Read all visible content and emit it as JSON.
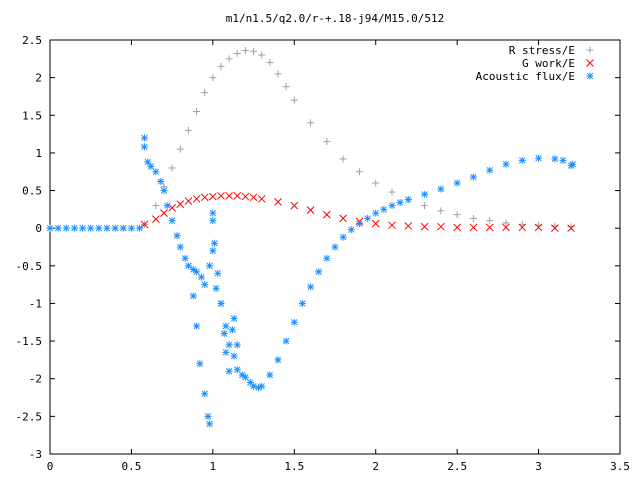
{
  "chart_data": {
    "type": "scatter",
    "title": "m1/n1.5/q2.0/r-+.18-j94/M15.0/512",
    "xlabel": "",
    "ylabel": "",
    "xlim": [
      0,
      3.5
    ],
    "ylim": [
      -3,
      2.5
    ],
    "xticks": [
      "0",
      "0.5",
      "1",
      "1.5",
      "2",
      "2.5",
      "3",
      "3.5"
    ],
    "yticks": [
      "2.5",
      "2",
      "1.5",
      "1",
      "0.5",
      "0",
      "-0.5",
      "-1",
      "-1.5",
      "-2",
      "-2.5",
      "-3"
    ],
    "grid": false,
    "legend_position": "top-right",
    "series": [
      {
        "name": "R stress/E",
        "marker": "+",
        "color": "#a0a0a0",
        "x": [
          0.58,
          0.65,
          0.7,
          0.75,
          0.8,
          0.85,
          0.9,
          0.95,
          1.0,
          1.05,
          1.1,
          1.15,
          1.2,
          1.25,
          1.3,
          1.35,
          1.4,
          1.45,
          1.5,
          1.6,
          1.7,
          1.8,
          1.9,
          2.0,
          2.1,
          2.2,
          2.3,
          2.4,
          2.5,
          2.6,
          2.7,
          2.8,
          2.9,
          3.0,
          3.1,
          3.2
        ],
        "y": [
          0.05,
          0.3,
          0.55,
          0.8,
          1.05,
          1.3,
          1.55,
          1.8,
          2.0,
          2.15,
          2.25,
          2.32,
          2.36,
          2.35,
          2.3,
          2.2,
          2.05,
          1.88,
          1.7,
          1.4,
          1.15,
          0.92,
          0.75,
          0.6,
          0.48,
          0.38,
          0.3,
          0.23,
          0.18,
          0.13,
          0.1,
          0.07,
          0.05,
          0.04,
          0.03,
          0.02
        ]
      },
      {
        "name": "G work/E",
        "marker": "x",
        "color": "#ff0000",
        "x": [
          0.58,
          0.65,
          0.7,
          0.75,
          0.8,
          0.85,
          0.9,
          0.95,
          1.0,
          1.05,
          1.1,
          1.15,
          1.2,
          1.25,
          1.3,
          1.4,
          1.5,
          1.6,
          1.7,
          1.8,
          1.9,
          2.0,
          2.1,
          2.2,
          2.3,
          2.4,
          2.5,
          2.6,
          2.7,
          2.8,
          2.9,
          3.0,
          3.1,
          3.2
        ],
        "y": [
          0.05,
          0.12,
          0.2,
          0.27,
          0.32,
          0.36,
          0.39,
          0.41,
          0.42,
          0.43,
          0.43,
          0.43,
          0.42,
          0.41,
          0.39,
          0.35,
          0.3,
          0.24,
          0.18,
          0.13,
          0.09,
          0.06,
          0.04,
          0.03,
          0.02,
          0.02,
          0.01,
          0.01,
          0.01,
          0.01,
          0.01,
          0.01,
          0.0,
          0.0
        ]
      },
      {
        "name": "Acoustic flux/E",
        "marker": "*",
        "color": "#1e90ff",
        "x": [
          0.0,
          0.05,
          0.1,
          0.15,
          0.2,
          0.25,
          0.3,
          0.35,
          0.4,
          0.45,
          0.5,
          0.55,
          0.58,
          0.58,
          0.6,
          0.62,
          0.65,
          0.68,
          0.7,
          0.72,
          0.75,
          0.78,
          0.8,
          0.83,
          0.85,
          0.88,
          0.9,
          0.93,
          0.95,
          0.98,
          1.0,
          1.02,
          1.05,
          1.08,
          1.1,
          1.13,
          1.15,
          1.18,
          1.2,
          1.23,
          1.25,
          1.28,
          1.3,
          1.35,
          1.4,
          1.45,
          1.5,
          1.55,
          1.6,
          1.65,
          1.7,
          1.75,
          1.8,
          1.85,
          1.9,
          1.95,
          2.0,
          2.05,
          2.1,
          2.15,
          2.2,
          2.3,
          2.4,
          2.5,
          2.6,
          2.7,
          2.8,
          2.9,
          3.0,
          3.1,
          3.15,
          3.2,
          3.21,
          0.88,
          0.9,
          0.92,
          0.95,
          0.97,
          0.98,
          1.0,
          1.0,
          1.01,
          1.03,
          1.05,
          1.07,
          1.08,
          1.1,
          1.12,
          1.13,
          1.15
        ],
        "y": [
          0.0,
          0.0,
          0.0,
          0.0,
          0.0,
          0.0,
          0.0,
          0.0,
          0.0,
          0.0,
          0.0,
          0.0,
          1.2,
          1.08,
          0.88,
          0.82,
          0.75,
          0.62,
          0.5,
          0.3,
          0.1,
          -0.1,
          -0.25,
          -0.4,
          -0.5,
          -0.55,
          -0.58,
          -0.65,
          -0.75,
          -0.5,
          -0.3,
          -0.8,
          -1.0,
          -1.3,
          -1.55,
          -1.7,
          -1.88,
          -1.95,
          -1.98,
          -2.05,
          -2.1,
          -2.12,
          -2.1,
          -1.95,
          -1.75,
          -1.5,
          -1.25,
          -1.0,
          -0.78,
          -0.58,
          -0.4,
          -0.25,
          -0.12,
          -0.02,
          0.06,
          0.13,
          0.2,
          0.25,
          0.3,
          0.34,
          0.38,
          0.45,
          0.52,
          0.6,
          0.68,
          0.77,
          0.85,
          0.9,
          0.93,
          0.92,
          0.9,
          0.83,
          0.85,
          -0.9,
          -1.3,
          -1.8,
          -2.2,
          -2.5,
          -2.6,
          0.2,
          0.1,
          -0.2,
          -0.6,
          -1.0,
          -1.4,
          -1.65,
          -1.9,
          -1.35,
          -1.2,
          -1.55
        ]
      }
    ]
  }
}
